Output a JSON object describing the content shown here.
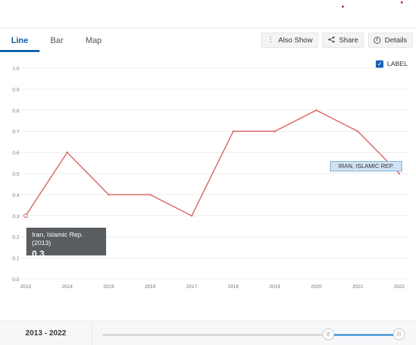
{
  "tabs": [
    {
      "label": "Line",
      "active": true
    },
    {
      "label": "Bar",
      "active": false
    },
    {
      "label": "Map",
      "active": false
    }
  ],
  "actions": {
    "also_show": "Also Show",
    "share": "Share",
    "details": "Details"
  },
  "label_toggle": {
    "text": "LABEL",
    "checked": true
  },
  "tooltip": {
    "title": "Iran, Islamic Rep. (2013)",
    "value": "0.3"
  },
  "series_label": "IRAN, ISLAMIC REP.",
  "footer": {
    "range_start": "2013",
    "range_sep": " - ",
    "range_end": "2022",
    "range_start_fraction": 0.755,
    "range_end_fraction": 1.0
  },
  "colors": {
    "accent": "#0b5cab",
    "line": "#d96b6b",
    "tooltip_bg": "#5a5d60",
    "slider_fill": "#5aa0d8"
  },
  "chart_data": {
    "type": "line",
    "x": [
      2013,
      2014,
      2015,
      2016,
      2017,
      2018,
      2019,
      2020,
      2021,
      2022
    ],
    "series": [
      {
        "name": "Iran, Islamic Rep.",
        "values": [
          0.3,
          0.6,
          0.4,
          0.4,
          0.3,
          0.7,
          0.7,
          0.8,
          0.7,
          0.5
        ]
      }
    ],
    "y_ticks": [
      "0.0",
      "0.1",
      "0.2",
      "0.3",
      "0.4",
      "0.5",
      "0.6",
      "0.7",
      "0.8",
      "0.9",
      "1.0"
    ],
    "ylim": [
      0,
      1.0
    ],
    "grid": true,
    "title": "",
    "xlabel": "",
    "ylabel": ""
  }
}
